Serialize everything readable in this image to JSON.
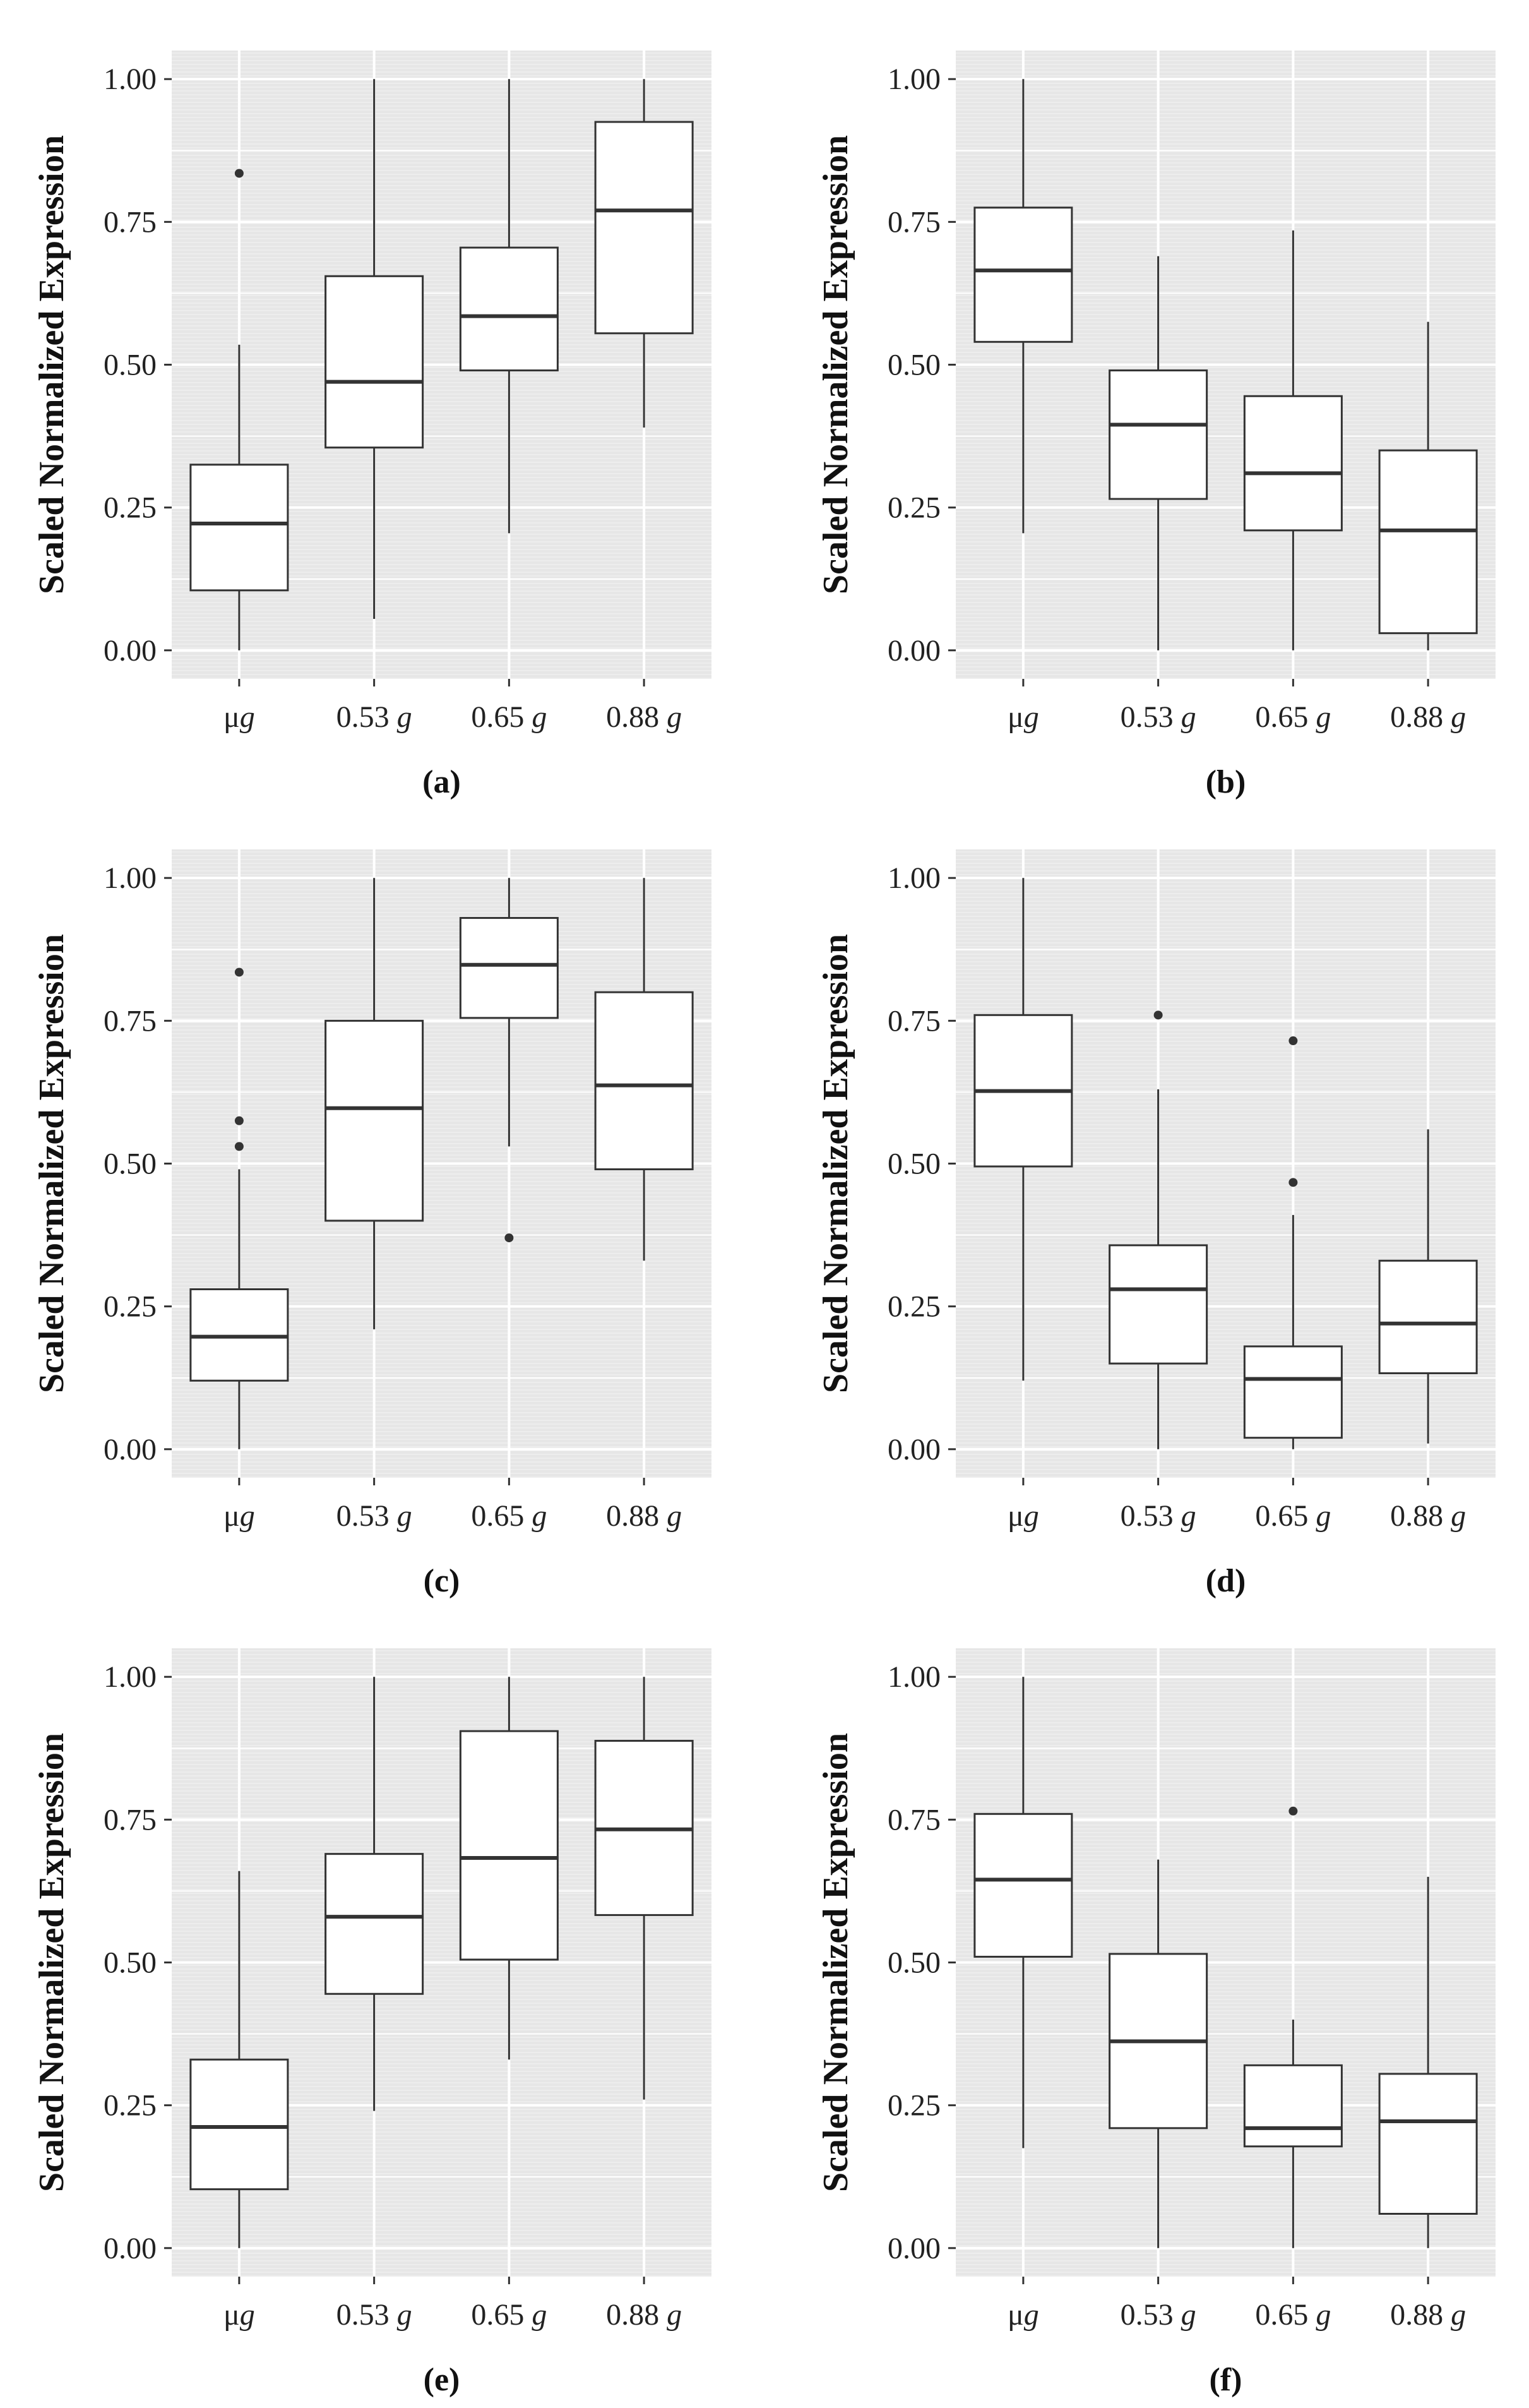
{
  "figure": {
    "background": "#ffffff",
    "panel_color": "#e6e6e6",
    "grid_color": "#ffffff",
    "box_fill": "#ffffff",
    "ink": "#333333"
  },
  "chart_data": [
    {
      "type": "box",
      "label": "(a)",
      "ylabel": "Scaled Normalized Expression",
      "ylim": [
        -0.05,
        1.05
      ],
      "yticks": [
        0.0,
        0.25,
        0.5,
        0.75,
        1.0
      ],
      "ytick_labels": [
        "0.00",
        "0.25",
        "0.50",
        "0.75",
        "1.00"
      ],
      "categories": [
        {
          "value": "μ",
          "unit": "g"
        },
        {
          "value": "0.53",
          "unit": "g"
        },
        {
          "value": "0.65",
          "unit": "g"
        },
        {
          "value": "0.88",
          "unit": "g"
        }
      ],
      "boxes": [
        {
          "whisker_low": 0.0,
          "q1": 0.105,
          "median": 0.222,
          "q3": 0.325,
          "whisker_high": 0.535,
          "outliers": [
            0.835
          ]
        },
        {
          "whisker_low": 0.055,
          "q1": 0.355,
          "median": 0.47,
          "q3": 0.655,
          "whisker_high": 1.0,
          "outliers": []
        },
        {
          "whisker_low": 0.205,
          "q1": 0.49,
          "median": 0.585,
          "q3": 0.705,
          "whisker_high": 1.0,
          "outliers": []
        },
        {
          "whisker_low": 0.39,
          "q1": 0.555,
          "median": 0.77,
          "q3": 0.925,
          "whisker_high": 1.0,
          "outliers": []
        }
      ]
    },
    {
      "type": "box",
      "label": "(b)",
      "ylabel": "Scaled Normalized Expression",
      "ylim": [
        -0.05,
        1.05
      ],
      "yticks": [
        0.0,
        0.25,
        0.5,
        0.75,
        1.0
      ],
      "ytick_labels": [
        "0.00",
        "0.25",
        "0.50",
        "0.75",
        "1.00"
      ],
      "categories": [
        {
          "value": "μ",
          "unit": "g"
        },
        {
          "value": "0.53",
          "unit": "g"
        },
        {
          "value": "0.65",
          "unit": "g"
        },
        {
          "value": "0.88",
          "unit": "g"
        }
      ],
      "boxes": [
        {
          "whisker_low": 0.205,
          "q1": 0.54,
          "median": 0.665,
          "q3": 0.775,
          "whisker_high": 1.0,
          "outliers": []
        },
        {
          "whisker_low": 0.0,
          "q1": 0.265,
          "median": 0.395,
          "q3": 0.49,
          "whisker_high": 0.69,
          "outliers": []
        },
        {
          "whisker_low": 0.0,
          "q1": 0.21,
          "median": 0.31,
          "q3": 0.445,
          "whisker_high": 0.735,
          "outliers": []
        },
        {
          "whisker_low": 0.0,
          "q1": 0.03,
          "median": 0.21,
          "q3": 0.35,
          "whisker_high": 0.575,
          "outliers": []
        }
      ]
    },
    {
      "type": "box",
      "label": "(c)",
      "ylabel": "Scaled Normalized Expression",
      "ylim": [
        -0.05,
        1.05
      ],
      "yticks": [
        0.0,
        0.25,
        0.5,
        0.75,
        1.0
      ],
      "ytick_labels": [
        "0.00",
        "0.25",
        "0.50",
        "0.75",
        "1.00"
      ],
      "categories": [
        {
          "value": "μ",
          "unit": "g"
        },
        {
          "value": "0.53",
          "unit": "g"
        },
        {
          "value": "0.65",
          "unit": "g"
        },
        {
          "value": "0.88",
          "unit": "g"
        }
      ],
      "boxes": [
        {
          "whisker_low": 0.0,
          "q1": 0.12,
          "median": 0.197,
          "q3": 0.28,
          "whisker_high": 0.49,
          "outliers": [
            0.835,
            0.575,
            0.53
          ]
        },
        {
          "whisker_low": 0.21,
          "q1": 0.4,
          "median": 0.597,
          "q3": 0.75,
          "whisker_high": 1.0,
          "outliers": []
        },
        {
          "whisker_low": 0.53,
          "q1": 0.755,
          "median": 0.848,
          "q3": 0.93,
          "whisker_high": 1.0,
          "outliers": [
            0.37
          ]
        },
        {
          "whisker_low": 0.33,
          "q1": 0.49,
          "median": 0.637,
          "q3": 0.8,
          "whisker_high": 1.0,
          "outliers": []
        }
      ]
    },
    {
      "type": "box",
      "label": "(d)",
      "ylabel": "Scaled Normalized Expression",
      "ylim": [
        -0.05,
        1.05
      ],
      "yticks": [
        0.0,
        0.25,
        0.5,
        0.75,
        1.0
      ],
      "ytick_labels": [
        "0.00",
        "0.25",
        "0.50",
        "0.75",
        "1.00"
      ],
      "categories": [
        {
          "value": "μ",
          "unit": "g"
        },
        {
          "value": "0.53",
          "unit": "g"
        },
        {
          "value": "0.65",
          "unit": "g"
        },
        {
          "value": "0.88",
          "unit": "g"
        }
      ],
      "boxes": [
        {
          "whisker_low": 0.12,
          "q1": 0.495,
          "median": 0.627,
          "q3": 0.76,
          "whisker_high": 1.0,
          "outliers": []
        },
        {
          "whisker_low": 0.0,
          "q1": 0.15,
          "median": 0.28,
          "q3": 0.357,
          "whisker_high": 0.63,
          "outliers": [
            0.76
          ]
        },
        {
          "whisker_low": 0.0,
          "q1": 0.02,
          "median": 0.123,
          "q3": 0.18,
          "whisker_high": 0.41,
          "outliers": [
            0.715,
            0.467
          ]
        },
        {
          "whisker_low": 0.01,
          "q1": 0.133,
          "median": 0.22,
          "q3": 0.33,
          "whisker_high": 0.56,
          "outliers": []
        }
      ]
    },
    {
      "type": "box",
      "label": "(e)",
      "ylabel": "Scaled Normalized Expression",
      "ylim": [
        -0.05,
        1.05
      ],
      "yticks": [
        0.0,
        0.25,
        0.5,
        0.75,
        1.0
      ],
      "ytick_labels": [
        "0.00",
        "0.25",
        "0.50",
        "0.75",
        "1.00"
      ],
      "categories": [
        {
          "value": "μ",
          "unit": "g"
        },
        {
          "value": "0.53",
          "unit": "g"
        },
        {
          "value": "0.65",
          "unit": "g"
        },
        {
          "value": "0.88",
          "unit": "g"
        }
      ],
      "boxes": [
        {
          "whisker_low": 0.0,
          "q1": 0.103,
          "median": 0.212,
          "q3": 0.33,
          "whisker_high": 0.66,
          "outliers": []
        },
        {
          "whisker_low": 0.24,
          "q1": 0.445,
          "median": 0.58,
          "q3": 0.69,
          "whisker_high": 1.0,
          "outliers": []
        },
        {
          "whisker_low": 0.33,
          "q1": 0.505,
          "median": 0.683,
          "q3": 0.905,
          "whisker_high": 1.0,
          "outliers": []
        },
        {
          "whisker_low": 0.26,
          "q1": 0.583,
          "median": 0.733,
          "q3": 0.888,
          "whisker_high": 1.0,
          "outliers": []
        }
      ]
    },
    {
      "type": "box",
      "label": "(f)",
      "ylabel": "Scaled Normalized Expression",
      "ylim": [
        -0.05,
        1.05
      ],
      "yticks": [
        0.0,
        0.25,
        0.5,
        0.75,
        1.0
      ],
      "ytick_labels": [
        "0.00",
        "0.25",
        "0.50",
        "0.75",
        "1.00"
      ],
      "categories": [
        {
          "value": "μ",
          "unit": "g"
        },
        {
          "value": "0.53",
          "unit": "g"
        },
        {
          "value": "0.65",
          "unit": "g"
        },
        {
          "value": "0.88",
          "unit": "g"
        }
      ],
      "boxes": [
        {
          "whisker_low": 0.175,
          "q1": 0.51,
          "median": 0.645,
          "q3": 0.76,
          "whisker_high": 1.0,
          "outliers": []
        },
        {
          "whisker_low": 0.0,
          "q1": 0.21,
          "median": 0.362,
          "q3": 0.515,
          "whisker_high": 0.68,
          "outliers": []
        },
        {
          "whisker_low": 0.0,
          "q1": 0.178,
          "median": 0.21,
          "q3": 0.32,
          "whisker_high": 0.4,
          "outliers": [
            0.765
          ]
        },
        {
          "whisker_low": 0.0,
          "q1": 0.06,
          "median": 0.222,
          "q3": 0.305,
          "whisker_high": 0.65,
          "outliers": []
        }
      ]
    }
  ]
}
